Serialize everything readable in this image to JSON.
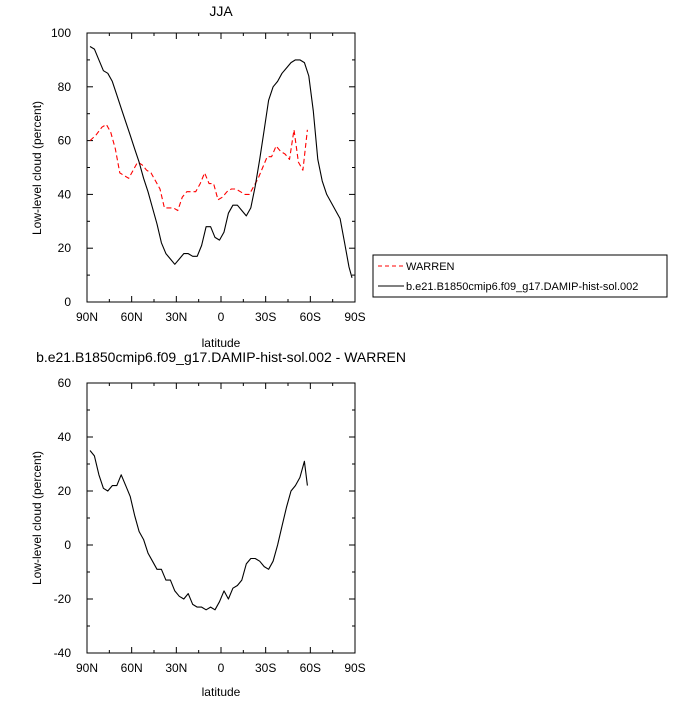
{
  "chart_data": [
    {
      "type": "line",
      "title": "JJA",
      "xlabel": "latitude",
      "ylabel": "Low-level cloud (percent)",
      "xlim": [
        90,
        -90
      ],
      "ylim": [
        0,
        100
      ],
      "x_ticks": [
        90,
        60,
        30,
        0,
        -30,
        -60,
        -90
      ],
      "x_tick_labels": [
        "90N",
        "60N",
        "30N",
        "0",
        "30S",
        "60S",
        "90S"
      ],
      "y_ticks": [
        0,
        20,
        40,
        60,
        80,
        100
      ],
      "y_tick_labels": [
        "0",
        "20",
        "40",
        "60",
        "80",
        "100"
      ],
      "legend_position": "right",
      "series": [
        {
          "name": "WARREN",
          "color": "#ff0000",
          "style": "dashed",
          "x": [
            88,
            84,
            80,
            77,
            74,
            71,
            68,
            65,
            62,
            59,
            56,
            53,
            50,
            47,
            44,
            41,
            38,
            35,
            32,
            29,
            26,
            23,
            20,
            17,
            14,
            11,
            8,
            5,
            2,
            -1,
            -4,
            -7,
            -10,
            -13,
            -16,
            -19,
            -22,
            -25,
            -28,
            -31,
            -34,
            -37,
            -40,
            -43,
            -46,
            -49,
            -52,
            -55,
            -58
          ],
          "y": [
            60,
            62,
            65,
            66,
            63,
            57,
            48,
            47,
            46,
            49,
            52,
            51,
            49,
            48,
            45,
            42,
            35,
            35,
            35,
            34,
            39,
            41,
            41,
            41,
            44,
            48,
            44,
            44,
            38,
            39,
            41,
            42,
            42,
            41,
            40,
            40,
            43,
            46,
            50,
            54,
            54,
            58,
            56,
            55,
            53,
            64,
            52,
            49,
            64
          ]
        },
        {
          "name": "b.e21.B1850cmip6.f09_g17.DAMIP-hist-sol.002",
          "color": "#000000",
          "style": "solid",
          "x": [
            88,
            85,
            82,
            79,
            76,
            73,
            70,
            67,
            64,
            61,
            58,
            55,
            52,
            49,
            46,
            43,
            40,
            37,
            34,
            31,
            28,
            25,
            22,
            19,
            16,
            13,
            10,
            7,
            4,
            1,
            -2,
            -5,
            -8,
            -11,
            -14,
            -17,
            -20,
            -23,
            -26,
            -29,
            -32,
            -35,
            -38,
            -41,
            -44,
            -47,
            -50,
            -53,
            -56,
            -59,
            -62,
            -65,
            -68,
            -71,
            -74,
            -77,
            -80,
            -83,
            -86,
            -88
          ],
          "y": [
            95,
            94,
            90,
            86,
            85,
            82,
            77,
            72,
            67,
            62,
            57,
            52,
            46,
            41,
            35,
            29,
            22,
            18,
            16,
            14,
            16,
            18,
            18,
            17,
            17,
            21,
            28,
            28,
            24,
            23,
            26,
            33,
            36,
            36,
            34,
            32,
            35,
            43,
            53,
            64,
            75,
            80,
            82,
            85,
            87,
            89,
            90,
            90,
            89,
            84,
            71,
            53,
            45,
            40,
            37,
            34,
            31,
            22,
            13,
            9
          ]
        }
      ]
    },
    {
      "type": "line",
      "title": "b.e21.B1850cmip6.f09_g17.DAMIP-hist-sol.002 - WARREN",
      "xlabel": "latitude",
      "ylabel": "Low-level cloud (percent)",
      "xlim": [
        90,
        -90
      ],
      "ylim": [
        -40,
        60
      ],
      "x_ticks": [
        90,
        60,
        30,
        0,
        -30,
        -60,
        -90
      ],
      "x_tick_labels": [
        "90N",
        "60N",
        "30N",
        "0",
        "30S",
        "60S",
        "90S"
      ],
      "y_ticks": [
        -40,
        -20,
        0,
        20,
        40,
        60
      ],
      "y_tick_labels": [
        "-40",
        "-20",
        "0",
        "20",
        "40",
        "60"
      ],
      "series": [
        {
          "color": "#000000",
          "style": "solid",
          "x": [
            88,
            85,
            82,
            79,
            76,
            73,
            70,
            67,
            64,
            61,
            58,
            55,
            52,
            49,
            46,
            43,
            40,
            37,
            34,
            31,
            28,
            25,
            22,
            19,
            16,
            13,
            10,
            7,
            4,
            1,
            -2,
            -5,
            -8,
            -11,
            -14,
            -17,
            -20,
            -23,
            -26,
            -29,
            -32,
            -35,
            -38,
            -41,
            -44,
            -47,
            -50,
            -53,
            -56,
            -58
          ],
          "y": [
            35,
            33,
            26,
            21,
            20,
            22,
            22,
            26,
            22,
            18,
            11,
            5,
            2,
            -3,
            -6,
            -9,
            -9,
            -13,
            -13,
            -17,
            -19,
            -20,
            -18,
            -22,
            -23,
            -23,
            -24,
            -23,
            -24,
            -21,
            -17,
            -20,
            -16,
            -15,
            -13,
            -7,
            -5,
            -5,
            -6,
            -8,
            -9,
            -6,
            0,
            7,
            14,
            20,
            22,
            25,
            31,
            22
          ]
        }
      ]
    }
  ],
  "legend": {
    "entries": [
      {
        "label": "WARREN",
        "color": "#ff0000",
        "style": "dashed"
      },
      {
        "label": "b.e21.B1850cmip6.f09_g17.DAMIP-hist-sol.002",
        "color": "#000000",
        "style": "solid"
      }
    ]
  }
}
